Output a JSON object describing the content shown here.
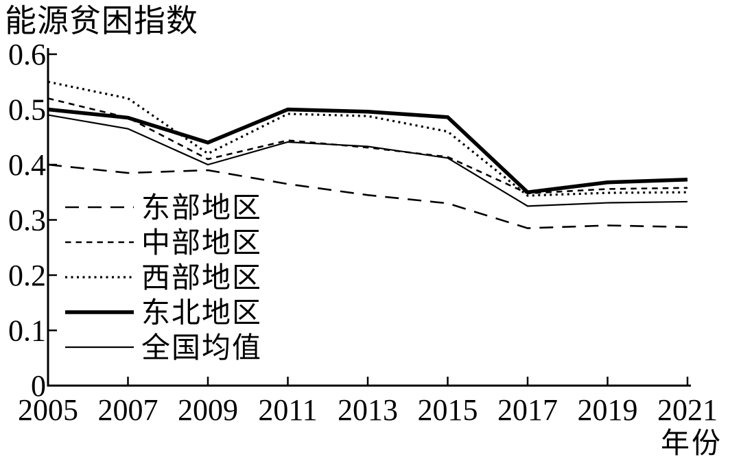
{
  "page": {
    "background": "#ffffff",
    "ink_color": "#000000"
  },
  "chart_data": {
    "type": "line",
    "title": "能源贫困指数",
    "xlabel": "年份",
    "ylabel": "能源贫困指数",
    "grid": false,
    "legend_position": "inside-lower-left",
    "line_color": "#000000",
    "x": [
      2005,
      2007,
      2009,
      2011,
      2013,
      2015,
      2017,
      2019,
      2021
    ],
    "x_tick_labels": [
      "2005",
      "2007",
      "2009",
      "2011",
      "2013",
      "2015",
      "2017",
      "2019",
      "2021"
    ],
    "xlim": [
      2005,
      2021
    ],
    "y_ticks": [
      0,
      0.1,
      0.2,
      0.3,
      0.4,
      0.5,
      0.6
    ],
    "y_tick_labels": [
      "0",
      "0.1",
      "0.2",
      "0.3",
      "0.4",
      "0.5",
      "0.6"
    ],
    "ylim": [
      0,
      0.6
    ],
    "series": [
      {
        "name": "东部地区",
        "style": "long-dash",
        "values": [
          0.4,
          0.385,
          0.39,
          0.365,
          0.345,
          0.33,
          0.285,
          0.29,
          0.287
        ]
      },
      {
        "name": "中部地区",
        "style": "short-dash",
        "values": [
          0.52,
          0.485,
          0.41,
          0.444,
          0.431,
          0.414,
          0.348,
          0.356,
          0.358
        ]
      },
      {
        "name": "西部地区",
        "style": "dotted",
        "values": [
          0.55,
          0.52,
          0.42,
          0.492,
          0.488,
          0.46,
          0.344,
          0.349,
          0.35
        ]
      },
      {
        "name": "东北地区",
        "style": "thick-solid",
        "values": [
          0.5,
          0.485,
          0.44,
          0.5,
          0.496,
          0.486,
          0.35,
          0.368,
          0.373
        ]
      },
      {
        "name": "全国均值",
        "style": "thin-solid",
        "values": [
          0.49,
          0.465,
          0.4,
          0.441,
          0.433,
          0.412,
          0.325,
          0.331,
          0.333
        ]
      }
    ]
  }
}
